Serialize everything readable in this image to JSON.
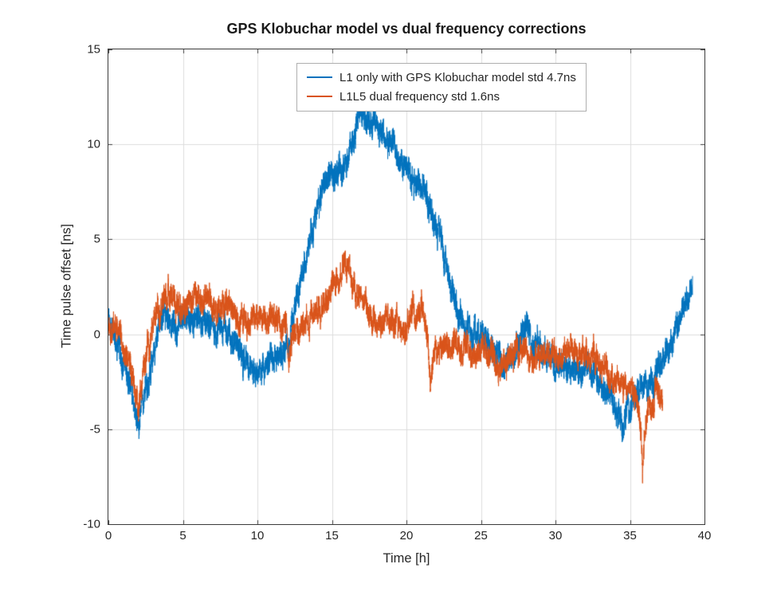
{
  "chart_data": {
    "type": "line",
    "title": "GPS Klobuchar model vs dual frequency corrections",
    "xlabel": "Time [h]",
    "ylabel": "Time pulse offset [ns]",
    "xlim": [
      0,
      40
    ],
    "ylim": [
      -10,
      15
    ],
    "xticks": [
      0,
      5,
      10,
      15,
      20,
      25,
      30,
      35,
      40
    ],
    "yticks": [
      -10,
      -5,
      0,
      5,
      10,
      15
    ],
    "grid": true,
    "grid_color": "#dcdcdc",
    "axis_color": "#3b3b3b",
    "legend": {
      "position": "north-inside",
      "entries": [
        {
          "label": "L1 only with GPS Klobuchar model std 4.7ns",
          "color": "#0072BD"
        },
        {
          "label": "L1L5 dual frequency std 1.6ns",
          "color": "#D95319"
        }
      ]
    },
    "series": [
      {
        "name": "L1 only with GPS Klobuchar model std 4.7ns",
        "color": "#0072BD",
        "std_ns": 4.7,
        "noise": 0.6,
        "seed": 42,
        "samples": 5600,
        "points": [
          [
            0,
            1.0
          ],
          [
            0.2,
            0.5
          ],
          [
            0.5,
            -0.3
          ],
          [
            0.8,
            -1.0
          ],
          [
            1.1,
            -1.6
          ],
          [
            1.4,
            -2.4
          ],
          [
            1.7,
            -3.6
          ],
          [
            1.9,
            -4.7
          ],
          [
            2.05,
            -5.1
          ],
          [
            2.2,
            -4.2
          ],
          [
            2.5,
            -3.0
          ],
          [
            2.8,
            -1.8
          ],
          [
            3.1,
            -0.8
          ],
          [
            3.4,
            0.3
          ],
          [
            3.7,
            0.9
          ],
          [
            4.0,
            1.0
          ],
          [
            4.3,
            0.5
          ],
          [
            4.6,
            0.4
          ],
          [
            5.0,
            0.9
          ],
          [
            5.4,
            1.1
          ],
          [
            5.8,
            0.6
          ],
          [
            6.2,
            0.9
          ],
          [
            6.6,
            0.9
          ],
          [
            7.0,
            0.4
          ],
          [
            7.3,
            0.1
          ],
          [
            7.6,
            0.4
          ],
          [
            8.0,
            0.4
          ],
          [
            8.4,
            -0.3
          ],
          [
            8.8,
            -0.8
          ],
          [
            9.2,
            -1.4
          ],
          [
            9.6,
            -2.0
          ],
          [
            9.9,
            -2.4
          ],
          [
            10.2,
            -2.0
          ],
          [
            10.6,
            -1.4
          ],
          [
            11.0,
            -1.1
          ],
          [
            11.4,
            -1.2
          ],
          [
            11.8,
            -0.9
          ],
          [
            12.1,
            -0.3
          ],
          [
            12.4,
            0.8
          ],
          [
            12.7,
            2.0
          ],
          [
            13.0,
            3.2
          ],
          [
            13.4,
            4.6
          ],
          [
            13.8,
            5.8
          ],
          [
            14.2,
            7.0
          ],
          [
            14.5,
            7.8
          ],
          [
            14.8,
            8.2
          ],
          [
            15.1,
            8.4
          ],
          [
            15.4,
            8.2
          ],
          [
            15.7,
            8.6
          ],
          [
            16.0,
            9.4
          ],
          [
            16.3,
            10.1
          ],
          [
            16.6,
            10.7
          ],
          [
            16.9,
            11.2
          ],
          [
            17.2,
            11.5
          ],
          [
            17.5,
            11.3
          ],
          [
            17.8,
            10.9
          ],
          [
            18.1,
            10.7
          ],
          [
            18.4,
            10.5
          ],
          [
            18.8,
            10.2
          ],
          [
            19.2,
            9.8
          ],
          [
            19.6,
            9.4
          ],
          [
            20.0,
            9.0
          ],
          [
            20.3,
            8.4
          ],
          [
            20.6,
            7.9
          ],
          [
            20.9,
            8.0
          ],
          [
            21.2,
            7.5
          ],
          [
            21.5,
            6.9
          ],
          [
            21.8,
            6.2
          ],
          [
            22.1,
            5.3
          ],
          [
            22.4,
            4.4
          ],
          [
            22.7,
            3.5
          ],
          [
            23.0,
            2.6
          ],
          [
            23.3,
            1.7
          ],
          [
            23.6,
            1.0
          ],
          [
            24.0,
            0.4
          ],
          [
            24.4,
            0.1
          ],
          [
            24.8,
            0.1
          ],
          [
            25.2,
            -0.2
          ],
          [
            25.6,
            -0.6
          ],
          [
            26.0,
            -1.0
          ],
          [
            26.4,
            -1.4
          ],
          [
            26.8,
            -1.3
          ],
          [
            27.2,
            -0.8
          ],
          [
            27.6,
            -0.3
          ],
          [
            28.0,
            0.2
          ],
          [
            28.4,
            0.0
          ],
          [
            28.8,
            -0.6
          ],
          [
            29.2,
            -1.0
          ],
          [
            29.6,
            -1.3
          ],
          [
            30.0,
            -1.5
          ],
          [
            30.5,
            -1.8
          ],
          [
            31.0,
            -2.0
          ],
          [
            31.5,
            -1.8
          ],
          [
            32.0,
            -2.0
          ],
          [
            32.5,
            -2.2
          ],
          [
            33.0,
            -2.4
          ],
          [
            33.5,
            -2.9
          ],
          [
            34.0,
            -3.8
          ],
          [
            34.4,
            -4.6
          ],
          [
            34.7,
            -4.3
          ],
          [
            35.0,
            -3.9
          ],
          [
            35.4,
            -3.2
          ],
          [
            35.8,
            -2.9
          ],
          [
            36.2,
            -2.7
          ],
          [
            36.6,
            -2.2
          ],
          [
            37.0,
            -1.6
          ],
          [
            37.5,
            -0.9
          ],
          [
            38.0,
            -0.1
          ],
          [
            38.5,
            1.0
          ],
          [
            38.9,
            2.1
          ],
          [
            39.2,
            2.6
          ]
        ]
      },
      {
        "name": "L1L5 dual frequency std 1.6ns",
        "color": "#D95319",
        "std_ns": 1.6,
        "noise": 0.55,
        "seed": 1337,
        "samples": 5300,
        "points": [
          [
            0,
            0.4
          ],
          [
            0.3,
            0.7
          ],
          [
            0.6,
            0.1
          ],
          [
            0.9,
            -0.4
          ],
          [
            1.2,
            -0.9
          ],
          [
            1.5,
            -1.7
          ],
          [
            1.75,
            -3.0
          ],
          [
            1.95,
            -4.0
          ],
          [
            2.1,
            -3.4
          ],
          [
            2.4,
            -2.0
          ],
          [
            2.7,
            -0.8
          ],
          [
            3.0,
            0.4
          ],
          [
            3.3,
            1.3
          ],
          [
            3.6,
            2.0
          ],
          [
            3.9,
            2.3
          ],
          [
            4.2,
            1.9
          ],
          [
            4.5,
            1.6
          ],
          [
            4.8,
            1.7
          ],
          [
            5.1,
            1.9
          ],
          [
            5.4,
            2.1
          ],
          [
            5.7,
            1.8
          ],
          [
            6.0,
            1.8
          ],
          [
            6.3,
            2.1
          ],
          [
            6.6,
            2.0
          ],
          [
            6.9,
            1.6
          ],
          [
            7.2,
            1.3
          ],
          [
            7.5,
            1.2
          ],
          [
            7.8,
            1.5
          ],
          [
            8.1,
            1.4
          ],
          [
            8.4,
            1.2
          ],
          [
            8.7,
            1.0
          ],
          [
            9.0,
            1.0
          ],
          [
            9.4,
            0.8
          ],
          [
            9.8,
            1.0
          ],
          [
            10.2,
            0.9
          ],
          [
            10.6,
            0.8
          ],
          [
            11.0,
            1.0
          ],
          [
            11.4,
            0.8
          ],
          [
            11.8,
            0.6
          ],
          [
            12.0,
            0.2
          ],
          [
            12.1,
            -1.6
          ],
          [
            12.25,
            -0.6
          ],
          [
            12.4,
            -0.1
          ],
          [
            12.7,
            0.1
          ],
          [
            13.0,
            0.3
          ],
          [
            13.4,
            0.6
          ],
          [
            13.8,
            1.0
          ],
          [
            14.2,
            1.4
          ],
          [
            14.6,
            1.9
          ],
          [
            15.0,
            2.5
          ],
          [
            15.4,
            3.1
          ],
          [
            15.7,
            3.6
          ],
          [
            15.9,
            3.8
          ],
          [
            16.1,
            3.2
          ],
          [
            16.4,
            2.6
          ],
          [
            16.7,
            2.1
          ],
          [
            17.0,
            1.7
          ],
          [
            17.4,
            1.1
          ],
          [
            17.8,
            0.7
          ],
          [
            18.2,
            0.6
          ],
          [
            18.6,
            0.8
          ],
          [
            19.0,
            0.6
          ],
          [
            19.4,
            0.4
          ],
          [
            19.8,
            0.6
          ],
          [
            20.2,
            0.9
          ],
          [
            20.6,
            1.1
          ],
          [
            21.0,
            1.4
          ],
          [
            21.2,
            0.9
          ],
          [
            21.45,
            -0.2
          ],
          [
            21.6,
            -2.2
          ],
          [
            21.8,
            -1.0
          ],
          [
            22.0,
            -0.7
          ],
          [
            22.4,
            -0.4
          ],
          [
            22.8,
            -0.7
          ],
          [
            23.2,
            -0.6
          ],
          [
            23.6,
            -0.7
          ],
          [
            24.0,
            -0.8
          ],
          [
            24.4,
            -1.0
          ],
          [
            24.8,
            -0.8
          ],
          [
            25.2,
            -0.9
          ],
          [
            25.6,
            -1.1
          ],
          [
            26.0,
            -1.4
          ],
          [
            26.4,
            -1.7
          ],
          [
            26.8,
            -1.3
          ],
          [
            27.2,
            -0.9
          ],
          [
            27.6,
            -0.8
          ],
          [
            28.0,
            -1.0
          ],
          [
            28.4,
            -1.1
          ],
          [
            28.8,
            -1.0
          ],
          [
            29.2,
            -0.9
          ],
          [
            29.6,
            -1.0
          ],
          [
            30.0,
            -1.1
          ],
          [
            30.4,
            -1.0
          ],
          [
            30.8,
            -0.9
          ],
          [
            31.2,
            -1.0
          ],
          [
            31.6,
            -1.1
          ],
          [
            32.0,
            -1.1
          ],
          [
            32.4,
            -1.0
          ],
          [
            32.8,
            -1.3
          ],
          [
            33.2,
            -1.8
          ],
          [
            33.6,
            -2.1
          ],
          [
            34.0,
            -2.4
          ],
          [
            34.4,
            -2.7
          ],
          [
            34.8,
            -2.9
          ],
          [
            35.2,
            -3.1
          ],
          [
            35.5,
            -3.4
          ],
          [
            35.7,
            -5.0
          ],
          [
            35.85,
            -7.6
          ],
          [
            36.0,
            -5.5
          ],
          [
            36.15,
            -4.3
          ],
          [
            36.4,
            -3.8
          ],
          [
            36.7,
            -3.5
          ],
          [
            37.0,
            -3.4
          ],
          [
            37.2,
            -3.4
          ]
        ]
      }
    ]
  }
}
